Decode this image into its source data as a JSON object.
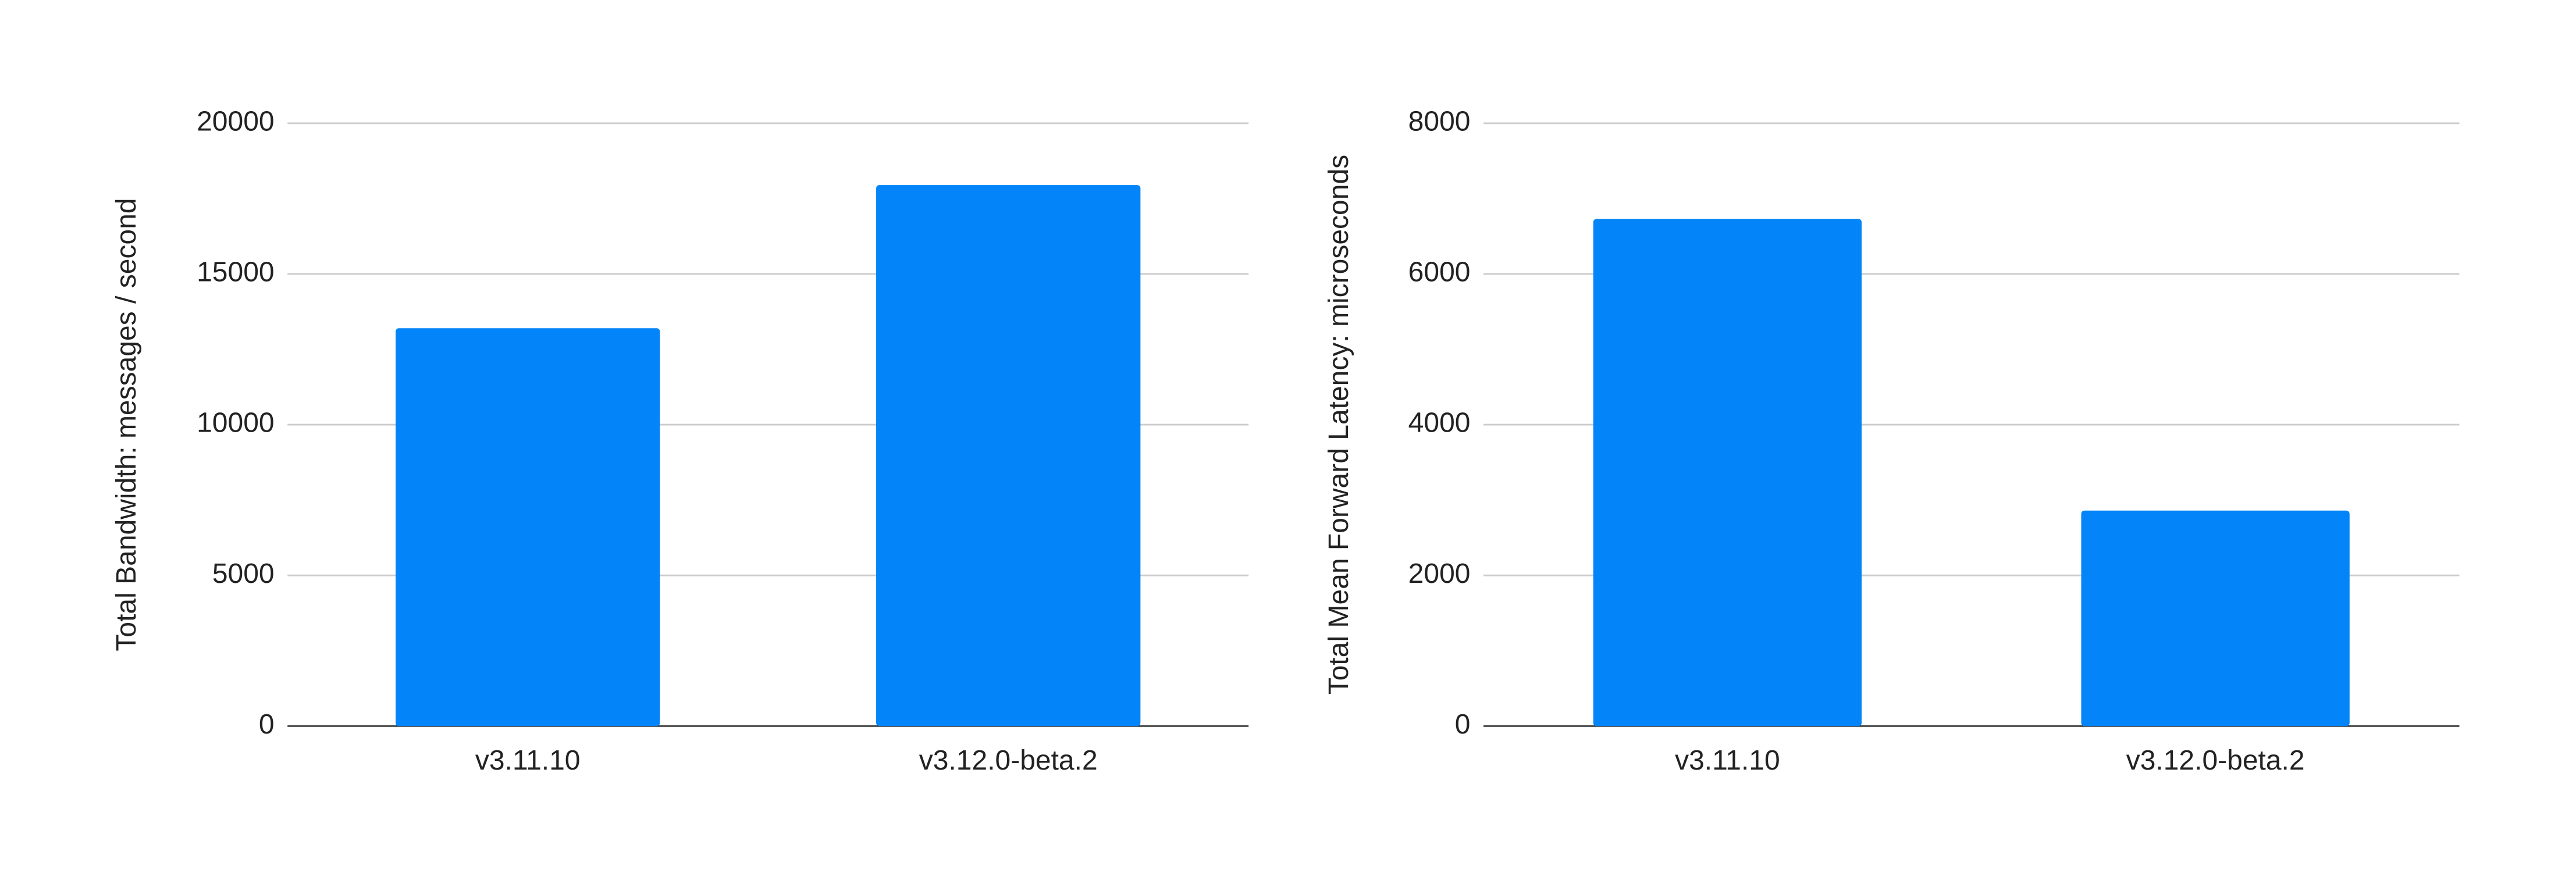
{
  "chart_data": [
    {
      "type": "bar",
      "y_label": "Total Bandwidth: messages / second",
      "categories": [
        "v3.11.10",
        "v3.12.0-beta.2"
      ],
      "values": [
        13200,
        17950
      ],
      "color": "#0384f8",
      "ylim": [
        0,
        20000
      ],
      "yticks": [
        0,
        5000,
        10000,
        15000,
        20000
      ],
      "grid": true
    },
    {
      "type": "bar",
      "y_label": "Total Mean Forward Latency: microseconds",
      "categories": [
        "v3.11.10",
        "v3.12.0-beta.2"
      ],
      "values": [
        6730,
        2860
      ],
      "color": "#0384f8",
      "ylim": [
        0,
        8000
      ],
      "yticks": [
        0,
        2000,
        4000,
        6000,
        8000
      ],
      "grid": true
    }
  ]
}
